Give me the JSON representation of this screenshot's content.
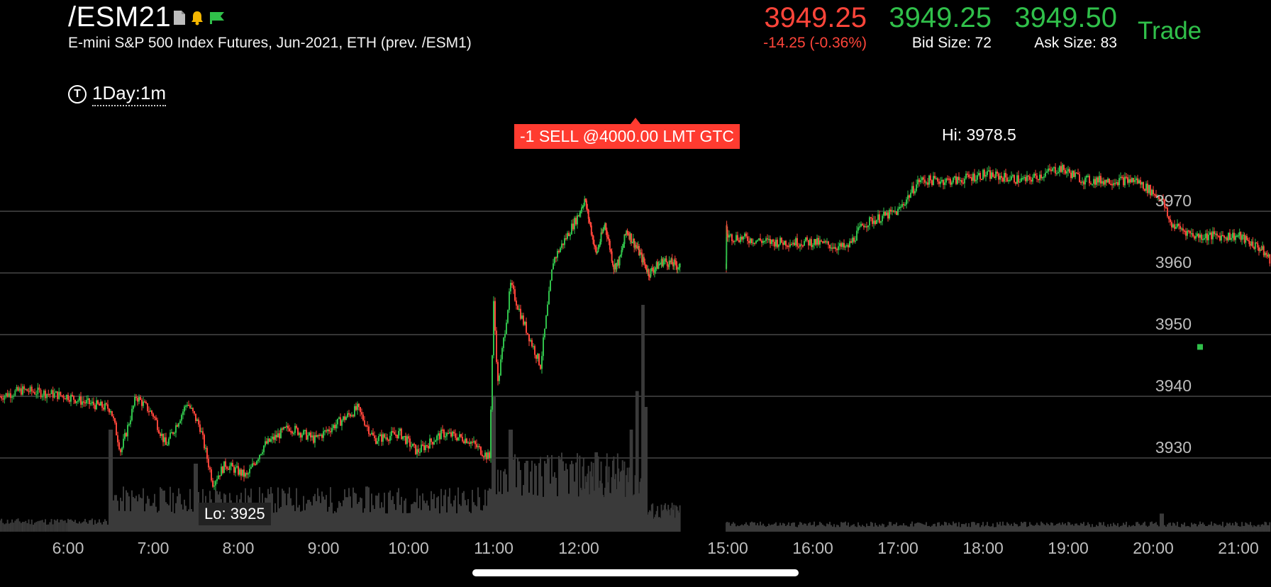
{
  "header": {
    "symbol": "/ESM21",
    "description": "E-mini S&P 500 Index Futures, Jun-2021, ETH (prev. /ESM1)",
    "icons": [
      "document-icon",
      "bell-icon",
      "flag-icon"
    ]
  },
  "quote": {
    "last": "3949.25",
    "change": "-14.25 (-0.36%)",
    "bid": "3949.25",
    "bid_size": "Bid Size: 72",
    "ask": "3949.50",
    "ask_size": "Ask Size: 83",
    "trade_label": "Trade"
  },
  "timeframe": {
    "icon_letter": "T",
    "label": "1Day:1m"
  },
  "annotations": {
    "order": "-1 SELL @4000.00 LMT GTC",
    "hi": "Hi: 3978.5",
    "lo": "Lo: 3925"
  },
  "colors": {
    "up": "#30c04a",
    "down": "#ff453a",
    "volume": "#3a3a3a",
    "grid": "#555555"
  },
  "chart_data": {
    "type": "candlestick",
    "title": "",
    "y_ticks": [
      3970,
      3960,
      3950,
      3940,
      3930
    ],
    "x_ticks": [
      "6:00",
      "7:00",
      "8:00",
      "9:00",
      "10:00",
      "11:00",
      "12:00",
      "15:00",
      "16:00",
      "17:00",
      "18:00",
      "19:00",
      "20:00",
      "21:00"
    ],
    "ylim": [
      3918,
      3983
    ],
    "high": 3978.5,
    "low": 3925,
    "last": 3949.25,
    "price_path": [
      [
        5.25,
        3940
      ],
      [
        5.5,
        3941
      ],
      [
        6.0,
        3940
      ],
      [
        6.2,
        3939
      ],
      [
        6.5,
        3938
      ],
      [
        6.62,
        3931
      ],
      [
        6.8,
        3940
      ],
      [
        7.0,
        3937
      ],
      [
        7.15,
        3932
      ],
      [
        7.4,
        3939
      ],
      [
        7.55,
        3935
      ],
      [
        7.7,
        3926
      ],
      [
        7.85,
        3929
      ],
      [
        8.1,
        3927
      ],
      [
        8.3,
        3932
      ],
      [
        8.6,
        3935
      ],
      [
        8.9,
        3933
      ],
      [
        9.2,
        3936
      ],
      [
        9.4,
        3938
      ],
      [
        9.6,
        3933
      ],
      [
        9.9,
        3934
      ],
      [
        10.1,
        3931
      ],
      [
        10.4,
        3934
      ],
      [
        10.7,
        3933
      ],
      [
        10.95,
        3930
      ],
      [
        11.0,
        3955
      ],
      [
        11.05,
        3942
      ],
      [
        11.2,
        3958
      ],
      [
        11.35,
        3952
      ],
      [
        11.55,
        3945
      ],
      [
        11.7,
        3962
      ],
      [
        11.9,
        3967
      ],
      [
        12.1,
        3972
      ],
      [
        12.3,
        3963
      ],
      [
        12.45,
        3968
      ],
      [
        12.6,
        3961
      ],
      [
        12.7,
        3962
      ],
      [
        12.82,
        3967
      ],
      [
        13.0,
        3964
      ],
      [
        13.2,
        3960
      ],
      [
        13.45,
        3962
      ],
      [
        13.75,
        3961
      ],
      [
        14.55,
        3960
      ],
      [
        14.65,
        3967
      ],
      [
        15.0,
        3966
      ],
      [
        15.5,
        3965
      ],
      [
        16.0,
        3965
      ],
      [
        16.4,
        3964
      ],
      [
        16.6,
        3968
      ],
      [
        17.0,
        3970
      ],
      [
        17.25,
        3975
      ],
      [
        17.7,
        3975
      ],
      [
        18.0,
        3976
      ],
      [
        18.5,
        3975
      ],
      [
        18.9,
        3977
      ],
      [
        19.2,
        3975
      ],
      [
        19.55,
        3975
      ],
      [
        19.8,
        3975
      ],
      [
        20.1,
        3972
      ],
      [
        20.2,
        3968
      ],
      [
        20.5,
        3966
      ],
      [
        20.8,
        3966
      ],
      [
        21.0,
        3966
      ],
      [
        21.3,
        3964
      ],
      [
        21.45,
        3962
      ]
    ],
    "volume_spikes": [
      [
        6.5,
        0.45
      ],
      [
        7.5,
        0.3
      ],
      [
        11.0,
        0.6
      ],
      [
        11.2,
        0.45
      ],
      [
        12.3,
        0.35
      ],
      [
        12.9,
        0.45
      ],
      [
        13.0,
        0.62
      ],
      [
        13.1,
        1.0
      ],
      [
        13.15,
        0.55
      ],
      [
        20.1,
        0.08
      ]
    ],
    "last_price_marker": 3948
  }
}
